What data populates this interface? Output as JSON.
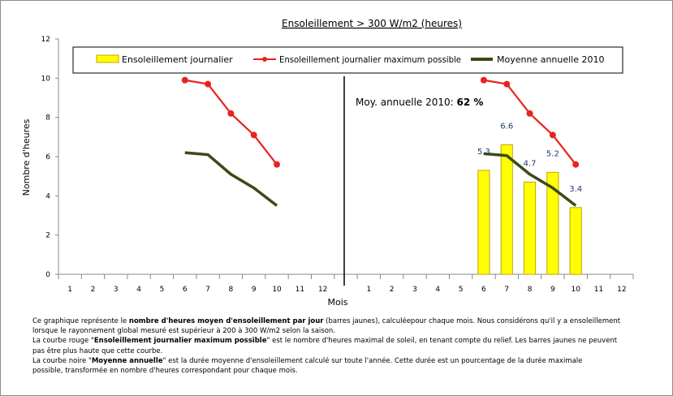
{
  "chart_data": {
    "type": "bar",
    "title": "Ensoleillement > 300 W/m2 (heures)",
    "xlabel": "Mois",
    "ylabel": "Nombre d'heures",
    "ylim": [
      0,
      12
    ],
    "yticks": [
      0,
      2,
      4,
      6,
      8,
      10,
      12
    ],
    "categories": [
      "1",
      "2",
      "3",
      "4",
      "5",
      "6",
      "7",
      "8",
      "9",
      "10",
      "11",
      "12",
      "",
      "1",
      "2",
      "3",
      "4",
      "5",
      "6",
      "7",
      "8",
      "9",
      "10",
      "11",
      "12"
    ],
    "grid": false,
    "legend_position": "top",
    "series": [
      {
        "name": "Ensoleillement journalier",
        "kind": "bar",
        "color": "#ffff00",
        "edge": "#c8a000",
        "values": [
          null,
          null,
          null,
          null,
          null,
          null,
          null,
          null,
          null,
          null,
          null,
          null,
          null,
          null,
          null,
          null,
          null,
          null,
          5.3,
          6.6,
          4.7,
          5.2,
          3.4,
          null,
          null
        ],
        "labels": [
          "5.3",
          "6.6",
          "4.7",
          "5.2",
          "3.4"
        ]
      },
      {
        "name": "Ensoleillement journalier maximum possible",
        "kind": "line-markers",
        "color": "#e8231e",
        "values": [
          null,
          null,
          null,
          null,
          null,
          9.9,
          9.7,
          8.2,
          7.1,
          5.6,
          null,
          null,
          null,
          null,
          null,
          null,
          null,
          null,
          9.9,
          9.7,
          8.2,
          7.1,
          5.6,
          null,
          null
        ]
      },
      {
        "name": "Moyenne annuelle 2010",
        "kind": "line",
        "color": "#3b4a16",
        "values": [
          null,
          null,
          null,
          null,
          null,
          6.2,
          6.1,
          5.1,
          4.4,
          3.5,
          null,
          null,
          null,
          null,
          null,
          null,
          null,
          null,
          6.15,
          6.05,
          5.1,
          4.4,
          3.5,
          null,
          null
        ]
      }
    ],
    "annotation": {
      "prefix": "Moy. annuelle 2010: ",
      "value": "62 %"
    }
  },
  "caption": {
    "l1a": "Ce graphique représente le ",
    "l1b": "nombre d'heures moyen d'ensoleillement par jour",
    "l1c": " (barres jaunes), calculéepour chaque mois. Nous considérons qu'il y a ensoleillement",
    "l2": "lorsque le rayonnement global mesuré est supérieur à 200 à 300 W/m2 selon la saison.",
    "l3a": "La courbe rouge \"",
    "l3b": "Ensoleillement journalier maximum possible",
    "l3c": "\" est le nombre d'heures maximal de soleil, en tenant compte du relief. Les barres jaunes ne peuvent",
    "l4": "pas être plus haute que cette courbe.",
    "l5a": "La courbe noire \"",
    "l5b": "Moyenne annuelle",
    "l5c": "\" est la durée moyenne d'ensoleillement calculé sur toute l'année. Cette durée est un pourcentage de la durée maximale",
    "l6": "possible, transformée en nombre d'heures correspondant pour chaque mois."
  }
}
